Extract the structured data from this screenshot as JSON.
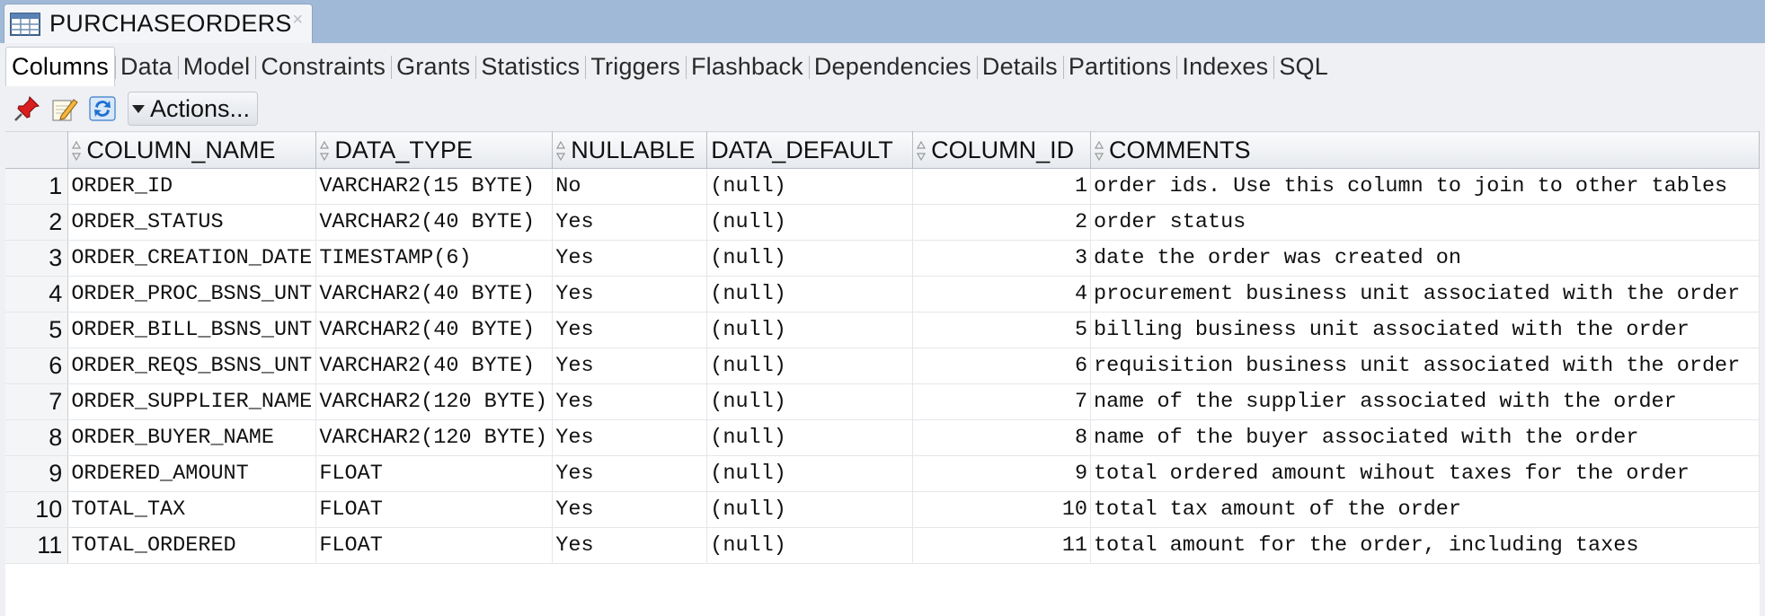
{
  "document_tab": {
    "title": "PURCHASEORDERS",
    "close_label": "×",
    "icon": "table-icon"
  },
  "subtabs": [
    {
      "label": "Columns",
      "active": true
    },
    {
      "label": "Data"
    },
    {
      "label": "Model"
    },
    {
      "label": "Constraints"
    },
    {
      "label": "Grants"
    },
    {
      "label": "Statistics"
    },
    {
      "label": "Triggers"
    },
    {
      "label": "Flashback"
    },
    {
      "label": "Dependencies"
    },
    {
      "label": "Details"
    },
    {
      "label": "Partitions"
    },
    {
      "label": "Indexes"
    },
    {
      "label": "SQL"
    }
  ],
  "toolbar": {
    "icons": [
      "pin-icon",
      "edit-icon",
      "refresh-icon"
    ],
    "actions_label": "Actions..."
  },
  "grid": {
    "columns": [
      "COLUMN_NAME",
      "DATA_TYPE",
      "NULLABLE",
      "DATA_DEFAULT",
      "COLUMN_ID",
      "COMMENTS"
    ],
    "rows": [
      {
        "n": "1",
        "name": "ORDER_ID",
        "type": "VARCHAR2(15 BYTE)",
        "nullable": "No",
        "default": "(null)",
        "id": "1",
        "comments": "order ids. Use this column to join to other tables"
      },
      {
        "n": "2",
        "name": "ORDER_STATUS",
        "type": "VARCHAR2(40 BYTE)",
        "nullable": "Yes",
        "default": "(null)",
        "id": "2",
        "comments": "order status"
      },
      {
        "n": "3",
        "name": "ORDER_CREATION_DATE",
        "type": "TIMESTAMP(6)",
        "nullable": "Yes",
        "default": "(null)",
        "id": "3",
        "comments": "date the order was created on"
      },
      {
        "n": "4",
        "name": "ORDER_PROC_BSNS_UNT",
        "type": "VARCHAR2(40 BYTE)",
        "nullable": "Yes",
        "default": "(null)",
        "id": "4",
        "comments": "procurement business unit associated with the order"
      },
      {
        "n": "5",
        "name": "ORDER_BILL_BSNS_UNT",
        "type": "VARCHAR2(40 BYTE)",
        "nullable": "Yes",
        "default": "(null)",
        "id": "5",
        "comments": "billing business unit associated with the order"
      },
      {
        "n": "6",
        "name": "ORDER_REQS_BSNS_UNT",
        "type": "VARCHAR2(40 BYTE)",
        "nullable": "Yes",
        "default": "(null)",
        "id": "6",
        "comments": "requisition business unit associated with the order"
      },
      {
        "n": "7",
        "name": "ORDER_SUPPLIER_NAME",
        "type": "VARCHAR2(120 BYTE)",
        "nullable": "Yes",
        "default": "(null)",
        "id": "7",
        "comments": "name of the supplier associated with the order"
      },
      {
        "n": "8",
        "name": "ORDER_BUYER_NAME",
        "type": "VARCHAR2(120 BYTE)",
        "nullable": "Yes",
        "default": "(null)",
        "id": "8",
        "comments": "name of the buyer associated with the order"
      },
      {
        "n": "9",
        "name": "ORDERED_AMOUNT",
        "type": "FLOAT",
        "nullable": "Yes",
        "default": "(null)",
        "id": "9",
        "comments": "total ordered amount wihout taxes for the order"
      },
      {
        "n": "10",
        "name": "TOTAL_TAX",
        "type": "FLOAT",
        "nullable": "Yes",
        "default": "(null)",
        "id": "10",
        "comments": "total tax amount of the order"
      },
      {
        "n": "11",
        "name": "TOTAL_ORDERED",
        "type": "FLOAT",
        "nullable": "Yes",
        "default": "(null)",
        "id": "11",
        "comments": "total amount for the order, including taxes"
      }
    ]
  }
}
